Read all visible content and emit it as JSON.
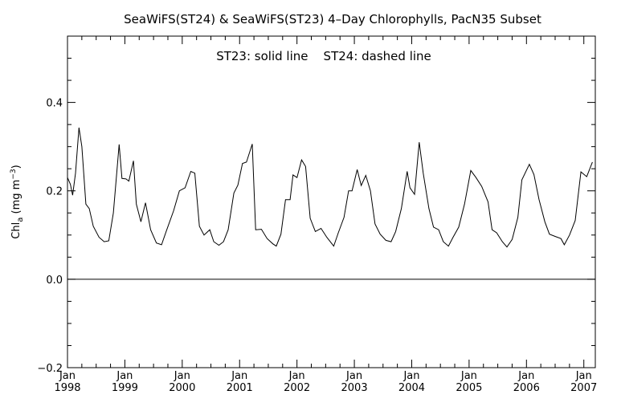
{
  "chart_data": {
    "type": "line",
    "title": "SeaWiFS(ST24) & SeaWiFS(ST23) 4–Day Chlorophylls, PacN35 Subset",
    "annotation": "ST23: solid line    ST24: dashed line",
    "ylabel": "Chl",
    "ylabel_sub": "a",
    "ylabel_units": "(mg m",
    "ylabel_sup": "−3",
    "ylabel_close": ")",
    "xlim": [
      1998.0,
      2007.2
    ],
    "ylim": [
      -0.2,
      0.55
    ],
    "yticks": [
      -0.2,
      0.0,
      0.2,
      0.4
    ],
    "ytick_labels": [
      "−0.2",
      "0.0",
      "0.2",
      "0.4"
    ],
    "xticks": [
      1998,
      1999,
      2000,
      2001,
      2002,
      2003,
      2004,
      2005,
      2006,
      2007
    ],
    "xtick_month": "Jan",
    "xtick_years": [
      "1998",
      "1999",
      "2000",
      "2001",
      "2002",
      "2003",
      "2004",
      "2005",
      "2006",
      "2007"
    ],
    "reference_line_y": 0.0,
    "grid": false,
    "series": [
      {
        "line_style": "solid",
        "color": "#000000",
        "points": [
          [
            1998.0,
            0.23
          ],
          [
            1998.05,
            0.215
          ],
          [
            1998.09,
            0.19
          ],
          [
            1998.14,
            0.24
          ],
          [
            1998.2,
            0.343
          ],
          [
            1998.25,
            0.3
          ],
          [
            1998.32,
            0.17
          ],
          [
            1998.38,
            0.16
          ],
          [
            1998.45,
            0.12
          ],
          [
            1998.55,
            0.095
          ],
          [
            1998.64,
            0.085
          ],
          [
            1998.72,
            0.087
          ],
          [
            1998.8,
            0.15
          ],
          [
            1998.9,
            0.305
          ],
          [
            1998.95,
            0.228
          ],
          [
            1999.02,
            0.227
          ],
          [
            1999.07,
            0.222
          ],
          [
            1999.15,
            0.268
          ],
          [
            1999.2,
            0.17
          ],
          [
            1999.28,
            0.13
          ],
          [
            1999.36,
            0.173
          ],
          [
            1999.45,
            0.112
          ],
          [
            1999.55,
            0.082
          ],
          [
            1999.64,
            0.078
          ],
          [
            1999.72,
            0.108
          ],
          [
            1999.85,
            0.155
          ],
          [
            1999.95,
            0.2
          ],
          [
            2000.05,
            0.207
          ],
          [
            2000.15,
            0.244
          ],
          [
            2000.22,
            0.24
          ],
          [
            2000.3,
            0.12
          ],
          [
            2000.38,
            0.1
          ],
          [
            2000.48,
            0.112
          ],
          [
            2000.55,
            0.085
          ],
          [
            2000.64,
            0.077
          ],
          [
            2000.72,
            0.085
          ],
          [
            2000.8,
            0.112
          ],
          [
            2000.9,
            0.195
          ],
          [
            2000.97,
            0.213
          ],
          [
            2001.05,
            0.262
          ],
          [
            2001.12,
            0.265
          ],
          [
            2001.22,
            0.306
          ],
          [
            2001.28,
            0.112
          ],
          [
            2001.38,
            0.113
          ],
          [
            2001.48,
            0.092
          ],
          [
            2001.58,
            0.08
          ],
          [
            2001.64,
            0.075
          ],
          [
            2001.72,
            0.102
          ],
          [
            2001.8,
            0.18
          ],
          [
            2001.88,
            0.18
          ],
          [
            2001.93,
            0.236
          ],
          [
            2002.0,
            0.23
          ],
          [
            2002.08,
            0.27
          ],
          [
            2002.15,
            0.255
          ],
          [
            2002.23,
            0.138
          ],
          [
            2002.32,
            0.108
          ],
          [
            2002.42,
            0.115
          ],
          [
            2002.52,
            0.095
          ],
          [
            2002.64,
            0.075
          ],
          [
            2002.72,
            0.105
          ],
          [
            2002.82,
            0.14
          ],
          [
            2002.9,
            0.2
          ],
          [
            2002.96,
            0.2
          ],
          [
            2003.05,
            0.248
          ],
          [
            2003.12,
            0.212
          ],
          [
            2003.2,
            0.235
          ],
          [
            2003.28,
            0.2
          ],
          [
            2003.36,
            0.125
          ],
          [
            2003.45,
            0.102
          ],
          [
            2003.55,
            0.088
          ],
          [
            2003.64,
            0.085
          ],
          [
            2003.72,
            0.108
          ],
          [
            2003.82,
            0.16
          ],
          [
            2003.92,
            0.244
          ],
          [
            2003.97,
            0.207
          ],
          [
            2004.05,
            0.192
          ],
          [
            2004.13,
            0.31
          ],
          [
            2004.2,
            0.24
          ],
          [
            2004.3,
            0.16
          ],
          [
            2004.38,
            0.118
          ],
          [
            2004.47,
            0.112
          ],
          [
            2004.55,
            0.085
          ],
          [
            2004.64,
            0.075
          ],
          [
            2004.72,
            0.095
          ],
          [
            2004.82,
            0.118
          ],
          [
            2004.92,
            0.17
          ],
          [
            2005.03,
            0.246
          ],
          [
            2005.12,
            0.23
          ],
          [
            2005.22,
            0.21
          ],
          [
            2005.33,
            0.175
          ],
          [
            2005.4,
            0.112
          ],
          [
            2005.48,
            0.105
          ],
          [
            2005.58,
            0.085
          ],
          [
            2005.66,
            0.073
          ],
          [
            2005.75,
            0.09
          ],
          [
            2005.85,
            0.14
          ],
          [
            2005.92,
            0.225
          ],
          [
            2006.05,
            0.26
          ],
          [
            2006.13,
            0.237
          ],
          [
            2006.22,
            0.18
          ],
          [
            2006.32,
            0.13
          ],
          [
            2006.4,
            0.102
          ],
          [
            2006.5,
            0.097
          ],
          [
            2006.6,
            0.092
          ],
          [
            2006.66,
            0.078
          ],
          [
            2006.75,
            0.1
          ],
          [
            2006.85,
            0.133
          ],
          [
            2006.95,
            0.243
          ],
          [
            2007.05,
            0.232
          ],
          [
            2007.15,
            0.265
          ]
        ]
      }
    ]
  }
}
